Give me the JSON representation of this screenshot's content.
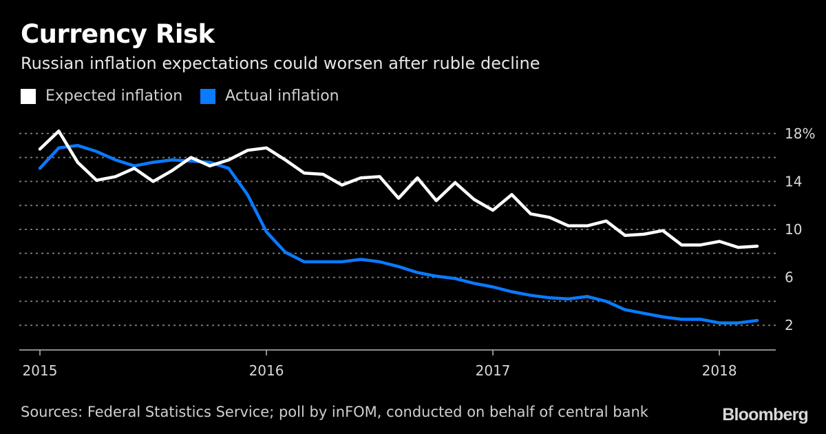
{
  "chart_data": {
    "type": "line",
    "title": "Currency Risk",
    "subtitle": "Russian inflation expectations could worsen after ruble decline",
    "source": "Sources: Federal Statistics Service; poll by inFOM, conducted on behalf of central bank",
    "logo": "Bloomberg",
    "x_start": "2015-01",
    "x_frequency": "monthly",
    "x_ticks": [
      "2015",
      "2016",
      "2017",
      "2018"
    ],
    "y_ticks": [
      {
        "value": 18,
        "label": "18%"
      },
      {
        "value": 14,
        "label": "14"
      },
      {
        "value": 10,
        "label": "10"
      },
      {
        "value": 6,
        "label": "6"
      },
      {
        "value": 2,
        "label": "2"
      }
    ],
    "ylim": [
      0,
      18
    ],
    "grid": true,
    "grid_values": [
      2,
      4,
      6,
      8,
      10,
      12,
      14,
      16,
      18
    ],
    "legend_placement": "top-left",
    "series": [
      {
        "name": "Expected inflation",
        "color": "#ffffff",
        "values": [
          16.7,
          18.2,
          15.6,
          14.1,
          14.4,
          15.1,
          14.0,
          14.9,
          16.0,
          15.3,
          15.8,
          16.6,
          16.8,
          15.8,
          14.7,
          14.6,
          13.7,
          14.3,
          14.4,
          12.6,
          14.3,
          12.4,
          13.9,
          12.5,
          11.6,
          12.9,
          11.3,
          11.0,
          10.3,
          10.3,
          10.7,
          9.5,
          9.6,
          9.9,
          8.7,
          8.7,
          9.0,
          8.5,
          8.6
        ]
      },
      {
        "name": "Actual inflation",
        "color": "#0a7aff",
        "values": [
          15.1,
          16.8,
          17.0,
          16.5,
          15.8,
          15.3,
          15.6,
          15.8,
          15.7,
          15.6,
          15.1,
          12.9,
          9.8,
          8.1,
          7.3,
          7.3,
          7.3,
          7.5,
          7.3,
          6.9,
          6.4,
          6.1,
          5.9,
          5.5,
          5.2,
          4.8,
          4.5,
          4.3,
          4.2,
          4.4,
          4.0,
          3.3,
          3.0,
          2.7,
          2.5,
          2.5,
          2.2,
          2.2,
          2.4
        ]
      }
    ]
  }
}
